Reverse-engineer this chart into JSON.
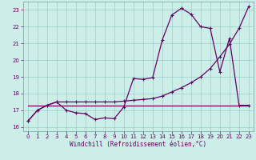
{
  "xlabel": "Windchill (Refroidissement éolien,°C)",
  "bg_color": "#cceee8",
  "grid_color": "#99cccc",
  "line_color": "#660066",
  "spine_color": "#7799aa",
  "tick_color": "#660066",
  "xlabel_color": "#660066",
  "xlim": [
    -0.5,
    23.5
  ],
  "ylim": [
    15.75,
    23.5
  ],
  "xticks": [
    0,
    1,
    2,
    3,
    4,
    5,
    6,
    7,
    8,
    9,
    10,
    11,
    12,
    13,
    14,
    15,
    16,
    17,
    18,
    19,
    20,
    21,
    22,
    23
  ],
  "yticks": [
    16,
    17,
    18,
    19,
    20,
    21,
    22,
    23
  ],
  "line1_x": [
    0,
    1,
    2,
    3,
    4,
    5,
    6,
    7,
    8,
    9,
    10,
    11,
    12,
    13,
    14,
    15,
    16,
    17,
    18,
    19,
    20,
    21,
    22,
    23
  ],
  "line1_y": [
    16.35,
    17.0,
    17.3,
    17.5,
    17.0,
    16.85,
    16.8,
    16.45,
    16.55,
    16.5,
    17.2,
    18.9,
    18.85,
    18.95,
    21.2,
    22.7,
    23.1,
    22.75,
    22.0,
    21.9,
    19.3,
    21.3,
    17.3,
    17.3
  ],
  "line2_x": [
    0,
    1,
    2,
    3,
    4,
    5,
    6,
    7,
    8,
    9,
    10,
    11,
    12,
    13,
    14,
    15,
    16,
    17,
    18,
    19,
    20,
    21,
    22,
    23
  ],
  "line2_y": [
    16.35,
    17.0,
    17.3,
    17.5,
    17.5,
    17.5,
    17.5,
    17.5,
    17.5,
    17.5,
    17.55,
    17.6,
    17.65,
    17.7,
    17.85,
    18.1,
    18.35,
    18.65,
    19.0,
    19.5,
    20.2,
    20.95,
    21.9,
    23.2
  ],
  "line3_x": [
    0,
    23
  ],
  "line3_y": [
    17.3,
    17.3
  ]
}
